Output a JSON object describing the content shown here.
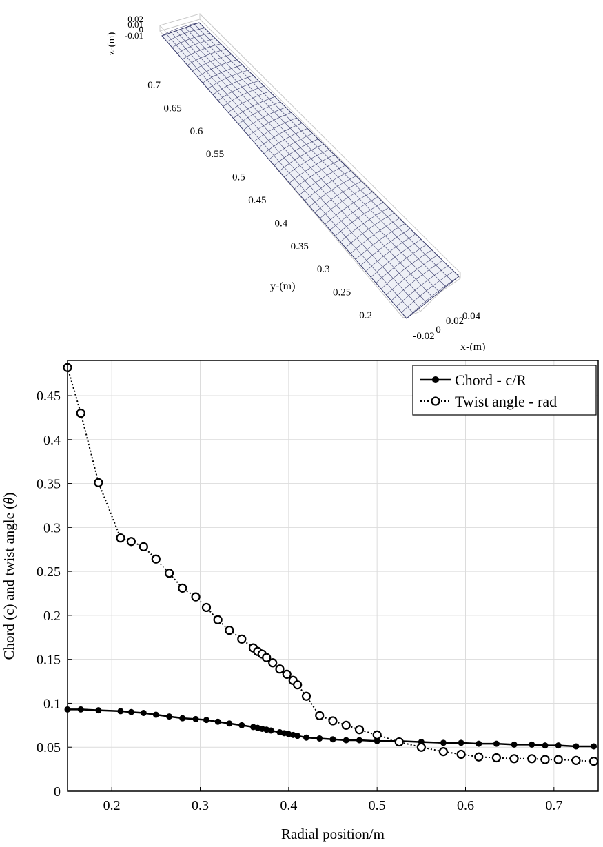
{
  "blade_view": {
    "z_label": "z-(m)",
    "y_label": "y-(m)",
    "x_label": "x-(m)",
    "z_ticks": [
      "0.02",
      "0.01",
      "0",
      "-0.01"
    ],
    "y_ticks": [
      "0.7",
      "0.65",
      "0.6",
      "0.55",
      "0.5",
      "0.45",
      "0.4",
      "0.35",
      "0.3",
      "0.25",
      "0.2"
    ],
    "x_ticks": [
      "-0.02",
      "0",
      "0.02",
      "0.04"
    ],
    "mesh_color": "#3c3f6e"
  },
  "chart_data": {
    "type": "line",
    "xlabel": "Radial position/m",
    "ylabel": "Chord (c) and twist angle (θ)",
    "xlim": [
      0.15,
      0.75
    ],
    "ylim": [
      0,
      0.49
    ],
    "xticks": [
      0.2,
      0.3,
      0.4,
      0.5,
      0.6,
      0.7
    ],
    "yticks": [
      0,
      0.05,
      0.1,
      0.15,
      0.2,
      0.25,
      0.3,
      0.35,
      0.4,
      0.45
    ],
    "grid": true,
    "legend_position": "top-right",
    "series": [
      {
        "name": "Chord - c/R",
        "marker": "filled-circle",
        "line": "solid",
        "x": [
          0.15,
          0.165,
          0.185,
          0.21,
          0.222,
          0.236,
          0.25,
          0.265,
          0.28,
          0.295,
          0.307,
          0.32,
          0.333,
          0.347,
          0.36,
          0.365,
          0.37,
          0.375,
          0.38,
          0.39,
          0.395,
          0.4,
          0.405,
          0.41,
          0.42,
          0.435,
          0.45,
          0.465,
          0.48,
          0.5,
          0.525,
          0.55,
          0.575,
          0.595,
          0.615,
          0.635,
          0.655,
          0.675,
          0.69,
          0.705,
          0.725,
          0.745
        ],
        "y": [
          0.093,
          0.093,
          0.092,
          0.091,
          0.09,
          0.089,
          0.087,
          0.085,
          0.083,
          0.082,
          0.081,
          0.079,
          0.077,
          0.075,
          0.073,
          0.072,
          0.071,
          0.07,
          0.069,
          0.067,
          0.066,
          0.065,
          0.064,
          0.063,
          0.061,
          0.06,
          0.059,
          0.058,
          0.058,
          0.057,
          0.057,
          0.056,
          0.055,
          0.055,
          0.054,
          0.054,
          0.053,
          0.053,
          0.052,
          0.052,
          0.051,
          0.051
        ]
      },
      {
        "name": "Twist angle - rad",
        "marker": "open-circle",
        "line": "dotted",
        "x": [
          0.15,
          0.165,
          0.185,
          0.21,
          0.222,
          0.236,
          0.25,
          0.265,
          0.28,
          0.295,
          0.307,
          0.32,
          0.333,
          0.347,
          0.36,
          0.365,
          0.37,
          0.375,
          0.382,
          0.39,
          0.398,
          0.405,
          0.41,
          0.42,
          0.435,
          0.45,
          0.465,
          0.48,
          0.5,
          0.525,
          0.55,
          0.575,
          0.595,
          0.615,
          0.635,
          0.655,
          0.675,
          0.69,
          0.705,
          0.725,
          0.745
        ],
        "y": [
          0.482,
          0.43,
          0.351,
          0.288,
          0.284,
          0.278,
          0.264,
          0.248,
          0.231,
          0.221,
          0.209,
          0.195,
          0.183,
          0.173,
          0.163,
          0.159,
          0.156,
          0.152,
          0.146,
          0.139,
          0.133,
          0.126,
          0.121,
          0.108,
          0.086,
          0.08,
          0.075,
          0.07,
          0.064,
          0.056,
          0.05,
          0.045,
          0.042,
          0.039,
          0.038,
          0.037,
          0.037,
          0.036,
          0.036,
          0.035,
          0.034
        ]
      }
    ]
  }
}
